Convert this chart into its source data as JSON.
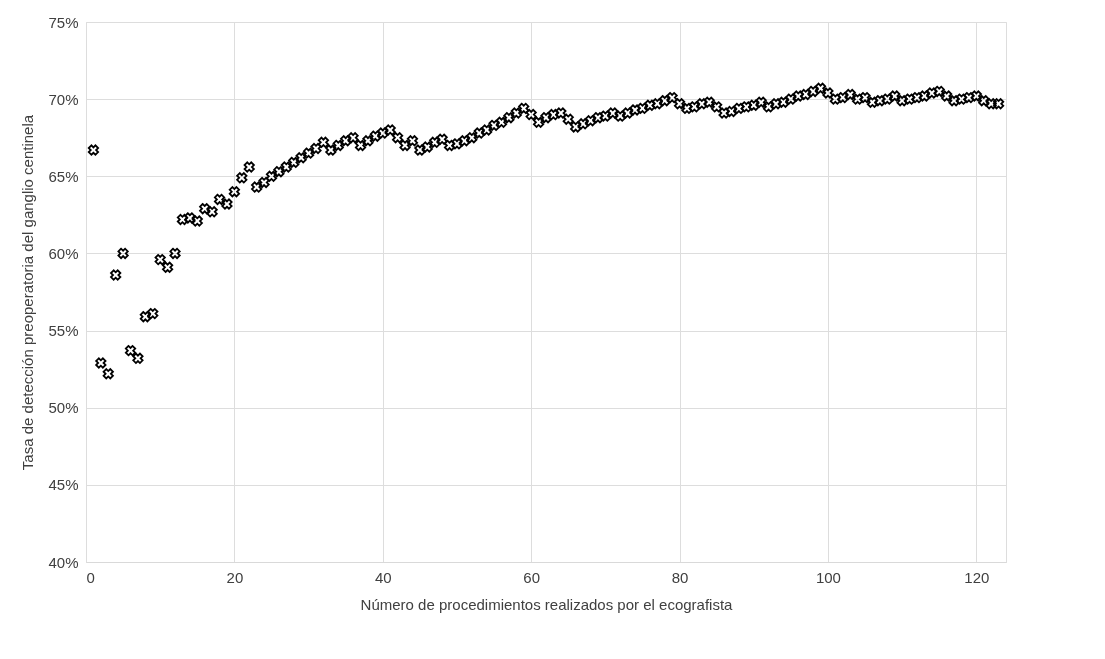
{
  "chart_data": {
    "type": "scatter",
    "xlabel": "Número de procedimientos realizados por el ecografista",
    "ylabel": "Tasa de detección preoperatoria del ganglio centinela",
    "x": [
      1,
      2,
      3,
      4,
      5,
      6,
      7,
      8,
      9,
      10,
      11,
      12,
      13,
      14,
      15,
      16,
      17,
      18,
      19,
      20,
      21,
      22,
      23,
      24,
      25,
      26,
      27,
      28,
      29,
      30,
      31,
      32,
      33,
      34,
      35,
      36,
      37,
      38,
      39,
      40,
      41,
      42,
      43,
      44,
      45,
      46,
      47,
      48,
      49,
      50,
      51,
      52,
      53,
      54,
      55,
      56,
      57,
      58,
      59,
      60,
      61,
      62,
      63,
      64,
      65,
      66,
      67,
      68,
      69,
      70,
      71,
      72,
      73,
      74,
      75,
      76,
      77,
      78,
      79,
      80,
      81,
      82,
      83,
      84,
      85,
      86,
      87,
      88,
      89,
      90,
      91,
      92,
      93,
      94,
      95,
      96,
      97,
      98,
      99,
      100,
      101,
      102,
      103,
      104,
      105,
      106,
      107,
      108,
      109,
      110,
      111,
      112,
      113,
      114,
      115,
      116,
      117,
      118,
      119,
      120,
      121,
      122,
      123
    ],
    "series": [
      {
        "color": "#000000",
        "values": [
          66.7,
          52.9,
          52.2,
          58.6,
          60.0,
          53.7,
          53.2,
          55.9,
          56.1,
          59.6,
          59.1,
          60.0,
          62.2,
          62.3,
          62.1,
          62.9,
          62.7,
          63.5,
          63.2,
          64.0,
          64.9,
          65.6,
          64.3,
          64.6,
          65.0,
          65.3,
          65.6,
          65.9,
          66.2,
          66.5,
          66.8,
          67.2,
          66.7,
          67.0,
          67.3,
          67.5,
          67.0,
          67.3,
          67.6,
          67.8,
          68.0,
          67.5,
          67.0,
          67.3,
          66.7,
          66.9,
          67.2,
          67.4,
          67.0,
          67.1,
          67.3,
          67.5,
          67.8,
          68.0,
          68.3,
          68.5,
          68.8,
          69.1,
          69.4,
          69.0,
          68.5,
          68.8,
          69.0,
          69.1,
          68.7,
          68.2,
          68.4,
          68.6,
          68.8,
          68.9,
          69.1,
          68.9,
          69.1,
          69.3,
          69.4,
          69.6,
          69.7,
          69.9,
          70.1,
          69.7,
          69.4,
          69.5,
          69.7,
          69.8,
          69.5,
          69.1,
          69.2,
          69.4,
          69.5,
          69.6,
          69.8,
          69.5,
          69.7,
          69.8,
          70.0,
          70.2,
          70.3,
          70.5,
          70.7,
          70.4,
          70.0,
          70.1,
          70.3,
          70.0,
          70.1,
          69.8,
          69.9,
          70.0,
          70.2,
          69.9,
          70.0,
          70.1,
          70.2,
          70.4,
          70.5,
          70.2,
          69.9,
          70.0,
          70.1,
          70.2,
          69.9,
          69.7,
          69.7
        ]
      }
    ],
    "xlim": [
      0,
      124
    ],
    "xticks": [
      0,
      20,
      40,
      60,
      80,
      100,
      120
    ],
    "ylim": [
      40,
      75
    ],
    "yticks": [
      {
        "value": 40,
        "label": "40%"
      },
      {
        "value": 45,
        "label": "45%"
      },
      {
        "value": 50,
        "label": "50%"
      },
      {
        "value": 55,
        "label": "55%"
      },
      {
        "value": 60,
        "label": "60%"
      },
      {
        "value": 65,
        "label": "65%"
      },
      {
        "value": 70,
        "label": "70%"
      },
      {
        "value": 75,
        "label": "75%"
      }
    ],
    "grid": true,
    "marker": "cross",
    "legend": false
  }
}
